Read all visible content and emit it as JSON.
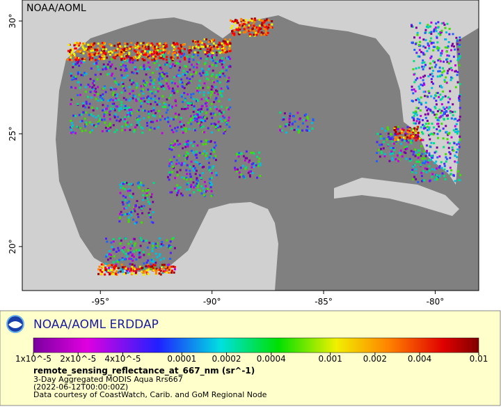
{
  "map": {
    "watermark": "NOAA/AOML",
    "xlim": [
      -98.5,
      -78.05
    ],
    "ylim": [
      18.05,
      30.93
    ],
    "lat_ticks": [
      {
        "value": 30,
        "label": "30°"
      },
      {
        "value": 25,
        "label": "25°"
      },
      {
        "value": 20,
        "label": "20°"
      }
    ],
    "lon_ticks": [
      {
        "value": -95,
        "label": "-95°"
      },
      {
        "value": -90,
        "label": "-90°"
      },
      {
        "value": -85,
        "label": "-85°"
      },
      {
        "value": -80,
        "label": "-80°"
      }
    ]
  },
  "legend": {
    "title": "NOAA/AOML ERDDAP",
    "colorbar": {
      "scale": "log",
      "lim": [
        1e-05,
        0.01
      ],
      "ticks": [
        {
          "value": 1e-05,
          "label": "1x10^-5"
        },
        {
          "value": 2e-05,
          "label": "2x10^-5"
        },
        {
          "value": 4e-05,
          "label": "4x10^-5"
        },
        0.0001,
        0.0002,
        0.0004,
        0.001,
        0.002,
        0.004,
        0.01
      ]
    },
    "variable": "remote_sensing_reflectance_at_667_nm (sr^-1)",
    "lines": [
      "3-Day Aggregated MODIS Aqua Rrs667",
      "(2022-06-12T00:00:00Z)",
      "Data courtesy of CoastWatch, Carib. and GoM Regional Node"
    ]
  }
}
